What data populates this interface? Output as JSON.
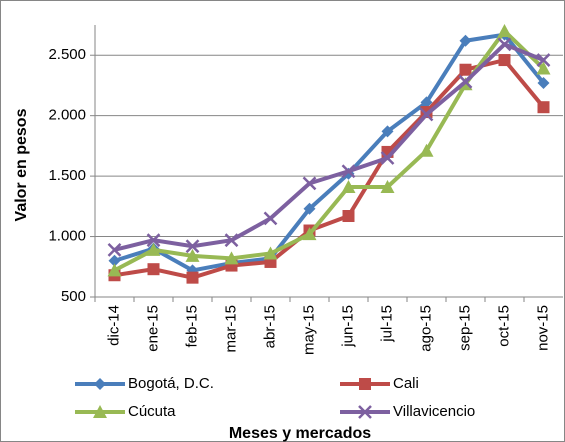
{
  "chart_data": {
    "type": "line",
    "x_label": "Meses y mercados",
    "y_label": "Valor en pesos",
    "categories": [
      "dic-14",
      "ene-15",
      "feb-15",
      "mar-15",
      "abr-15",
      "may-15",
      "jun-15",
      "jul-15",
      "ago-15",
      "sep-15",
      "oct-15",
      "nov-15"
    ],
    "series": [
      {
        "name": "Bogotá, D.C.",
        "color": "#4a7ebb",
        "marker": "diamond",
        "values": [
          800,
          900,
          720,
          780,
          820,
          1230,
          1520,
          1870,
          2110,
          2620,
          2670,
          2270
        ]
      },
      {
        "name": "Cali",
        "color": "#be4b48",
        "marker": "square",
        "values": [
          680,
          730,
          660,
          760,
          790,
          1050,
          1170,
          1700,
          2030,
          2380,
          2460,
          2070
        ]
      },
      {
        "name": "Cúcuta",
        "color": "#98b954",
        "marker": "triangle",
        "values": [
          720,
          890,
          840,
          820,
          860,
          1020,
          1410,
          1410,
          1710,
          2260,
          2700,
          2390
        ]
      },
      {
        "name": "Villavicencio",
        "color": "#7d60a0",
        "marker": "x",
        "values": [
          890,
          970,
          920,
          970,
          1150,
          1440,
          1540,
          1650,
          2010,
          2280,
          2590,
          2460
        ]
      }
    ],
    "ylim": [
      500,
      2750
    ],
    "yticks": [
      500,
      {
        "value": 1000,
        "label": "1.000"
      },
      {
        "value": 1500,
        "label": "1.500"
      },
      {
        "value": 2000,
        "label": "2.000"
      },
      {
        "value": 2500,
        "label": "2.500"
      }
    ],
    "grid": true
  }
}
